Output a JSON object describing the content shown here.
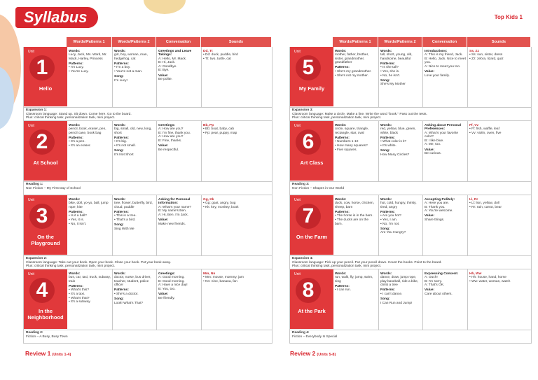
{
  "header": {
    "title": "Syllabus",
    "brand": "Top Kids 1"
  },
  "pages": [
    {
      "columns": [
        "Words/Patterns 1",
        "Words/Patterns 2",
        "Conversation",
        "Sounds"
      ],
      "units": [
        {
          "label": "Unit",
          "number": "1",
          "name": "Hello",
          "cells": [
            [
              {
                "heading": "Words:",
                "lines": [
                  "Lucy, Jack, Ms. Ward, Mr. Mack, Harley, Princess"
                ]
              },
              {
                "heading": "Patterns:",
                "lines": [
                  "• I'm Lucy.",
                  "• You're Lucy."
                ]
              }
            ],
            [
              {
                "heading": "Words:",
                "lines": [
                  "girl, boy, woman, man, hedgehog, cat"
                ]
              },
              {
                "heading": "Patterns:",
                "lines": [
                  "• I'm a boy.",
                  "• You're not a man."
                ]
              },
              {
                "heading": "Song:",
                "lines": [
                  "I'm Lucy!"
                ]
              }
            ],
            [
              {
                "heading": "Greetings and Leave Takings:",
                "lines": [
                  "A: Hello, Mr. Mack.",
                  "B: Hi, Jack.",
                  "A: Goodbye.",
                  "B: Bye."
                ]
              },
              {
                "heading": "Value:",
                "lines": [
                  "Be polite."
                ]
              }
            ],
            [
              {
                "heading": "Dd, Tt",
                "lines": [
                  "• Dd: duck, puddle, bird",
                  "• Tt: two, turtle, cat"
                ]
              }
            ]
          ],
          "footer": {
            "title": "Expansion 1:",
            "lines": [
              "Classroom language: Stand up. Sit down. Come here. Go to the board.",
              "Plus: critical thinking task, personalization task, mini project."
            ]
          }
        },
        {
          "label": "Unit",
          "number": "2",
          "name": "At School",
          "cells": [
            [
              {
                "heading": "Words:",
                "lines": [
                  "pencil, book, eraser, pen, pencil case, book bag"
                ]
              },
              {
                "heading": "Patterns:",
                "lines": [
                  "• It's a pen.",
                  "• It's an eraser."
                ]
              }
            ],
            [
              {
                "heading": "Words:",
                "lines": [
                  "big, small, old, new, long, short"
                ]
              },
              {
                "heading": "Patterns:",
                "lines": [
                  "• It's big.",
                  "• It's not small."
                ]
              },
              {
                "heading": "Song:",
                "lines": [
                  "It's Not Short"
                ]
              }
            ],
            [
              {
                "heading": "Greetings:",
                "lines": [
                  "A: How are you?",
                  "B: I'm fine, thank you.",
                  "A: How are you?",
                  "B: Fine, thanks."
                ]
              },
              {
                "heading": "Value:",
                "lines": [
                  "Be respectful."
                ]
              }
            ],
            [
              {
                "heading": "Bb, Pp",
                "lines": [
                  "• Bb: boat, baby, cab",
                  "• Pp: pear, puppy, map"
                ]
              }
            ]
          ],
          "footer": {
            "title": "Reading 1:",
            "lines": [
              "Non Fiction – My First Day of School"
            ]
          }
        },
        {
          "label": "Unit",
          "number": "3",
          "name": "On the Playground",
          "cells": [
            [
              {
                "heading": "Words:",
                "lines": [
                  "bike, doll, yo-yo, ball, jump rope, kite"
                ]
              },
              {
                "heading": "Patterns:",
                "lines": [
                  "• Is it a ball?",
                  "• Yes, it is.",
                  "• No, it isn't."
                ]
              }
            ],
            [
              {
                "heading": "Words:",
                "lines": [
                  "tree, flower, butterfly, bird, cloud, puddle"
                ]
              },
              {
                "heading": "Patterns:",
                "lines": [
                  "• This is a tree.",
                  "• That's a bird."
                ]
              },
              {
                "heading": "Song:",
                "lines": [
                  "Sing With Me"
                ]
              }
            ],
            [
              {
                "heading": "Asking for Personal Information:",
                "lines": [
                  "A: What's your name?",
                  "B: My name's Ben.",
                  "A: Hi, Ben. I'm Jack."
                ]
              },
              {
                "heading": "Value:",
                "lines": [
                  "Make new friends."
                ]
              }
            ],
            [
              {
                "heading": "Gg, Kk",
                "lines": [
                  "• Gg: goat, angry, bug",
                  "• Kk: key, monkey, book"
                ]
              }
            ]
          ],
          "footer": {
            "title": "Expansion 2:",
            "lines": [
              "Classroom language: Take out your book. Open your book. Close your book. Put your book away.",
              "Plus: critical thinking task, personalization task, mini project."
            ]
          }
        },
        {
          "label": "Unit",
          "number": "4",
          "name": "In the Neighborhood",
          "cells": [
            [
              {
                "heading": "Words:",
                "lines": [
                  "bus, car, taxi, truck, subway, train"
                ]
              },
              {
                "heading": "Patterns:",
                "lines": [
                  "• What's this?",
                  "• It's a taxi.",
                  "• What's that?",
                  "• It's a subway."
                ]
              }
            ],
            [
              {
                "heading": "Words:",
                "lines": [
                  "doctor, nurse, bus driver, teacher, student, police officer"
                ]
              },
              {
                "heading": "Patterns:",
                "lines": [
                  "• She's a doctor."
                ]
              },
              {
                "heading": "Song:",
                "lines": [
                  "Look! What's That?"
                ]
              }
            ],
            [
              {
                "heading": "Greetings:",
                "lines": [
                  "A: Good morning.",
                  "B: Good morning.",
                  "A: Have a nice day!",
                  "B: You, too."
                ]
              },
              {
                "heading": "Value:",
                "lines": [
                  "Be friendly."
                ]
              }
            ],
            [
              {
                "heading": "Mm, Nn",
                "lines": [
                  "• Mm: mouse, mommy, jam",
                  "• Nn: nine, banana, fan"
                ]
              }
            ]
          ],
          "footer": {
            "title": "Reading 2:",
            "lines": [
              "Fiction – A Busy, Busy Town"
            ]
          }
        }
      ],
      "review": {
        "title": "Review 1",
        "range": "(Units 1-4)"
      }
    },
    {
      "columns": [
        "Words/Patterns 1",
        "Words/Patterns 2",
        "Conversation",
        "Sounds"
      ],
      "units": [
        {
          "label": "Unit",
          "number": "5",
          "name": "My Family",
          "cells": [
            [
              {
                "heading": "Words:",
                "lines": [
                  "mother, father, brother, sister, grandmother, grandfather"
                ]
              },
              {
                "heading": "Patterns:",
                "lines": [
                  "• She's my grandmother.",
                  "• She's not my mother."
                ]
              }
            ],
            [
              {
                "heading": "Words:",
                "lines": [
                  "tall, short, young, old, handsome, beautiful"
                ]
              },
              {
                "heading": "Patterns:",
                "lines": [
                  "• Is she tall?",
                  "• Yes, she is.",
                  "• No, he isn't."
                ]
              },
              {
                "heading": "Song:",
                "lines": [
                  "She's My Mother"
                ]
              }
            ],
            [
              {
                "heading": "Introductions:",
                "lines": [
                  "A: This is my friend, Jack.",
                  "B: Hello, Jack. Nice to meet you.",
                  "A: Nice to meet you too."
                ]
              },
              {
                "heading": "Value:",
                "lines": [
                  "Love your family."
                ]
              }
            ],
            [
              {
                "heading": "Ss, Zz",
                "lines": [
                  "• Ss: sun, sister, dress",
                  "• Zz: zebra, lizard, quiz"
                ]
              }
            ]
          ],
          "footer": {
            "title": "Expansion 3:",
            "lines": [
              "Classroom language: Make a circle. Make a line. Write the word \"book.\" Pass out the tests.",
              "Plus: critical thinking task, personalization task, mini project."
            ]
          }
        },
        {
          "label": "Unit",
          "number": "6",
          "name": "Art Class",
          "cells": [
            [
              {
                "heading": "Words:",
                "lines": [
                  "circle, square, triangle, rectangle, star, oval"
                ]
              },
              {
                "heading": "Patterns:",
                "lines": [
                  "• Numbers 1-10",
                  "• How many squares?",
                  "• Five squares."
                ]
              }
            ],
            [
              {
                "heading": "Words:",
                "lines": [
                  "red, yellow, blue, green, white, black"
                ]
              },
              {
                "heading": "Patterns:",
                "lines": [
                  "• What color is it?",
                  "• It's white."
                ]
              },
              {
                "heading": "Song:",
                "lines": [
                  "How Many Circles?"
                ]
              }
            ],
            [
              {
                "heading": "Asking about Personal Preferences:",
                "lines": [
                  "A: What's your favorite color?",
                  "B: I like blue.",
                  "A: Me, too."
                ]
              },
              {
                "heading": "Value:",
                "lines": [
                  "Be curious."
                ]
              }
            ],
            [
              {
                "heading": "Ff, Vv",
                "lines": [
                  "• Ff: fish, waffle, leaf",
                  "• Vv: violin, oven, five"
                ]
              }
            ]
          ],
          "footer": {
            "title": "Reading 3:",
            "lines": [
              "Non Fiction – Shapes in Our World"
            ]
          }
        },
        {
          "label": "Unit",
          "number": "7",
          "name": "On the Farm",
          "cells": [
            [
              {
                "heading": "Words:",
                "lines": [
                  "duck, cow, horse, chicken, sheep, barn"
                ]
              },
              {
                "heading": "Patterns:",
                "lines": [
                  "• The horse is in the barn.",
                  "• The ducks are on the barn."
                ]
              }
            ],
            [
              {
                "heading": "Words:",
                "lines": [
                  "hot, cold, hungry, thirsty, tired, angry"
                ]
              },
              {
                "heading": "Patterns:",
                "lines": [
                  "• Are you hot?",
                  "• Yes, I am.",
                  "• No, I'm not."
                ]
              },
              {
                "heading": "Song:",
                "lines": [
                  "Are You Hungry?"
                ]
              }
            ],
            [
              {
                "heading": "Accepting Politely:",
                "lines": [
                  "A: Here you are.",
                  "B: Thank you.",
                  "A: You're welcome."
                ]
              },
              {
                "heading": "Value:",
                "lines": [
                  "Share things."
                ]
              }
            ],
            [
              {
                "heading": "Ll, Rr",
                "lines": [
                  "• Ll: lion, yellow, doll",
                  "• Rr: rain, carrot, bear"
                ]
              }
            ]
          ],
          "footer": {
            "title": "Expansion 4:",
            "lines": [
              "Classroom language: Pick up your pencil. Put your pencil down. Count the books. Point to the board.",
              "Plus: critical thinking task, personalization task, mini project."
            ]
          }
        },
        {
          "label": "Unit",
          "number": "8",
          "name": "At the Park",
          "cells": [
            [
              {
                "heading": "Words:",
                "lines": [
                  "run, walk, fly, jump, swim, sing"
                ]
              },
              {
                "heading": "Patterns:",
                "lines": [
                  "• I can run."
                ]
              }
            ],
            [
              {
                "heading": "Words:",
                "lines": [
                  "dance, draw, jump rope, play baseball, ride a bike, climb a tree"
                ]
              },
              {
                "heading": "Patterns:",
                "lines": [
                  "• I can't dance."
                ]
              },
              {
                "heading": "Song:",
                "lines": [
                  "I Can Run and Jump!"
                ]
              }
            ],
            [
              {
                "heading": "Expressing Concern:",
                "lines": [
                  "A: Ouch!",
                  "B: I'm sorry.",
                  "A: That's OK."
                ]
              },
              {
                "heading": "Value:",
                "lines": [
                  "Care about others."
                ]
              }
            ],
            [
              {
                "heading": "Hh, Ww",
                "lines": [
                  "• Hh: house, hand, horse",
                  "• Ww: water, woman, watch"
                ]
              }
            ]
          ],
          "footer": {
            "title": "Reading 4:",
            "lines": [
              "Fiction – Everybody Is Special"
            ]
          }
        }
      ],
      "review": {
        "title": "Review 2",
        "range": "(Units 5-8)"
      }
    }
  ]
}
